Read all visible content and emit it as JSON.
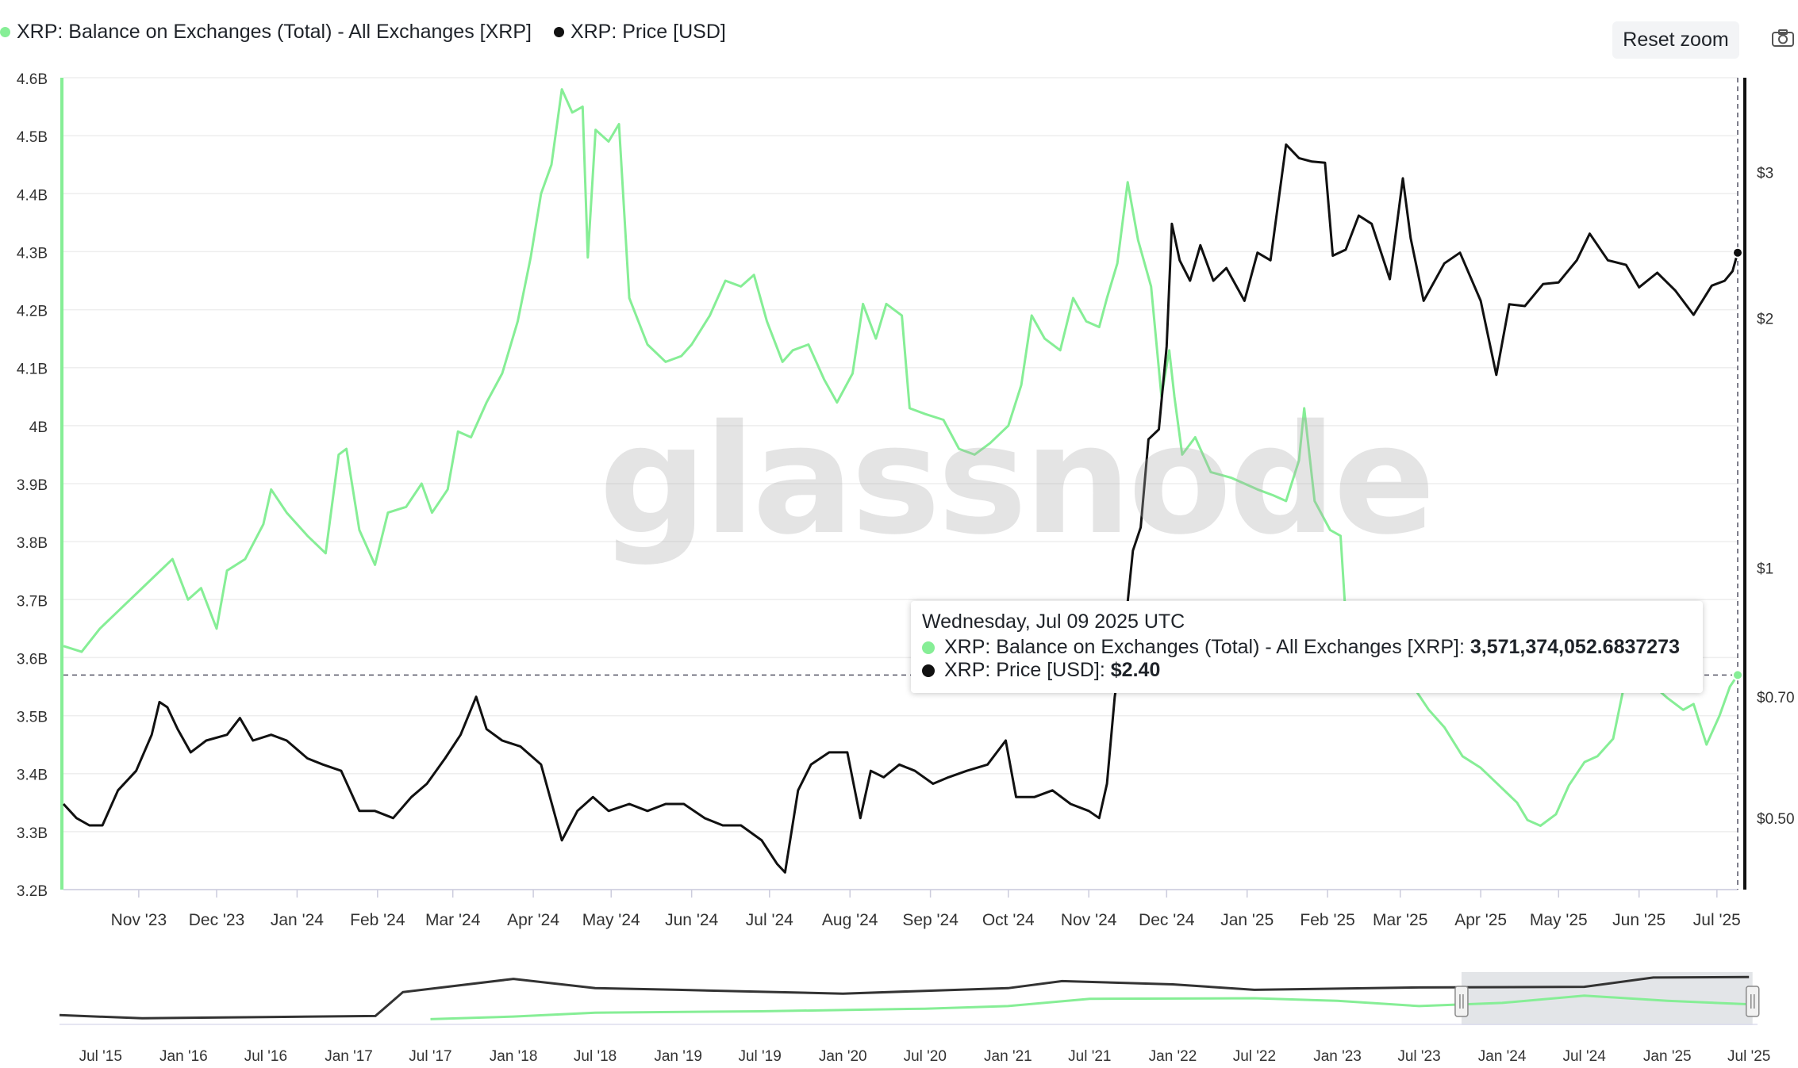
{
  "legend": {
    "series_1": "XRP: Balance on Exchanges (Total) - All Exchanges [XRP]",
    "series_2": "XRP: Price [USD]"
  },
  "toolbar": {
    "reset_zoom": "Reset zoom",
    "camera_icon": "camera-icon"
  },
  "watermark": "glassnode",
  "colors": {
    "balance": "#86ee96",
    "price": "#111111",
    "grid": "#eeeeee",
    "axis_text": "#333333"
  },
  "tooltip": {
    "date": "Wednesday, Jul 09 2025 UTC",
    "series_1_label": "XRP: Balance on Exchanges (Total) - All Exchanges [XRP]:",
    "series_1_value": "3,571,374,052.6837273",
    "series_2_label": "XRP: Price [USD]:",
    "series_2_value": "$2.40"
  },
  "chart_data": {
    "type": "line",
    "title": "",
    "x_range": [
      "2023-10-03",
      "2025-07-09"
    ],
    "x_ticks": [
      "Nov '23",
      "Dec '23",
      "Jan '24",
      "Feb '24",
      "Mar '24",
      "Apr '24",
      "May '24",
      "Jun '24",
      "Jul '24",
      "Aug '24",
      "Sep '24",
      "Oct '24",
      "Nov '24",
      "Dec '24",
      "Jan '25",
      "Feb '25",
      "Mar '25",
      "Apr '25",
      "May '25",
      "Jun '25",
      "Jul '25"
    ],
    "y_left": {
      "ticks": [
        "3.2B",
        "3.3B",
        "3.4B",
        "3.5B",
        "3.6B",
        "3.7B",
        "3.8B",
        "3.9B",
        "4B",
        "4.1B",
        "4.2B",
        "4.3B",
        "4.4B",
        "4.5B",
        "4.6B"
      ],
      "range": [
        3.2,
        4.6
      ],
      "unit": "B XRP"
    },
    "y_right": {
      "scale": "log",
      "ticks": [
        "$0.50",
        "$0.70",
        "$1",
        "$2",
        "$3"
      ],
      "range": [
        0.41,
        3.9
      ]
    },
    "series": [
      {
        "name": "XRP: Balance on Exchanges (Total) - All Exchanges [XRP]",
        "axis": "left",
        "points": [
          [
            "2023-10-03",
            3.62
          ],
          [
            "2023-10-10",
            3.61
          ],
          [
            "2023-10-17",
            3.65
          ],
          [
            "2023-10-24",
            3.68
          ],
          [
            "2023-10-31",
            3.71
          ],
          [
            "2023-11-07",
            3.74
          ],
          [
            "2023-11-14",
            3.77
          ],
          [
            "2023-11-20",
            3.7
          ],
          [
            "2023-11-25",
            3.72
          ],
          [
            "2023-12-01",
            3.65
          ],
          [
            "2023-12-05",
            3.75
          ],
          [
            "2023-12-12",
            3.77
          ],
          [
            "2023-12-19",
            3.83
          ],
          [
            "2023-12-22",
            3.89
          ],
          [
            "2023-12-28",
            3.85
          ],
          [
            "2024-01-05",
            3.81
          ],
          [
            "2024-01-12",
            3.78
          ],
          [
            "2024-01-17",
            3.95
          ],
          [
            "2024-01-20",
            3.96
          ],
          [
            "2024-01-25",
            3.82
          ],
          [
            "2024-01-31",
            3.76
          ],
          [
            "2024-02-05",
            3.85
          ],
          [
            "2024-02-12",
            3.86
          ],
          [
            "2024-02-18",
            3.9
          ],
          [
            "2024-02-22",
            3.85
          ],
          [
            "2024-02-28",
            3.89
          ],
          [
            "2024-03-03",
            3.99
          ],
          [
            "2024-03-08",
            3.98
          ],
          [
            "2024-03-14",
            4.04
          ],
          [
            "2024-03-20",
            4.09
          ],
          [
            "2024-03-26",
            4.18
          ],
          [
            "2024-03-31",
            4.29
          ],
          [
            "2024-04-04",
            4.4
          ],
          [
            "2024-04-08",
            4.45
          ],
          [
            "2024-04-12",
            4.58
          ],
          [
            "2024-04-16",
            4.54
          ],
          [
            "2024-04-20",
            4.55
          ],
          [
            "2024-04-22",
            4.29
          ],
          [
            "2024-04-25",
            4.51
          ],
          [
            "2024-04-30",
            4.49
          ],
          [
            "2024-05-04",
            4.52
          ],
          [
            "2024-05-08",
            4.22
          ],
          [
            "2024-05-15",
            4.14
          ],
          [
            "2024-05-22",
            4.11
          ],
          [
            "2024-05-28",
            4.12
          ],
          [
            "2024-06-01",
            4.14
          ],
          [
            "2024-06-08",
            4.19
          ],
          [
            "2024-06-14",
            4.25
          ],
          [
            "2024-06-20",
            4.24
          ],
          [
            "2024-06-25",
            4.26
          ],
          [
            "2024-06-30",
            4.18
          ],
          [
            "2024-07-06",
            4.11
          ],
          [
            "2024-07-10",
            4.13
          ],
          [
            "2024-07-16",
            4.14
          ],
          [
            "2024-07-22",
            4.08
          ],
          [
            "2024-07-27",
            4.04
          ],
          [
            "2024-08-02",
            4.09
          ],
          [
            "2024-08-06",
            4.21
          ],
          [
            "2024-08-11",
            4.15
          ],
          [
            "2024-08-15",
            4.21
          ],
          [
            "2024-08-21",
            4.19
          ],
          [
            "2024-08-24",
            4.03
          ],
          [
            "2024-08-30",
            4.02
          ],
          [
            "2024-09-06",
            4.01
          ],
          [
            "2024-09-12",
            3.96
          ],
          [
            "2024-09-18",
            3.95
          ],
          [
            "2024-09-24",
            3.97
          ],
          [
            "2024-10-01",
            4.0
          ],
          [
            "2024-10-06",
            4.07
          ],
          [
            "2024-10-10",
            4.19
          ],
          [
            "2024-10-15",
            4.15
          ],
          [
            "2024-10-21",
            4.13
          ],
          [
            "2024-10-26",
            4.22
          ],
          [
            "2024-10-31",
            4.18
          ],
          [
            "2024-11-05",
            4.17
          ],
          [
            "2024-11-08",
            4.22
          ],
          [
            "2024-11-12",
            4.28
          ],
          [
            "2024-11-16",
            4.42
          ],
          [
            "2024-11-20",
            4.32
          ],
          [
            "2024-11-25",
            4.24
          ],
          [
            "2024-11-29",
            4.05
          ],
          [
            "2024-12-02",
            4.13
          ],
          [
            "2024-12-04",
            4.05
          ],
          [
            "2024-12-07",
            3.95
          ],
          [
            "2024-12-12",
            3.98
          ],
          [
            "2024-12-18",
            3.92
          ],
          [
            "2024-12-26",
            3.91
          ],
          [
            "2025-01-05",
            3.89
          ],
          [
            "2025-01-11",
            3.88
          ],
          [
            "2025-01-16",
            3.87
          ],
          [
            "2025-01-21",
            3.94
          ],
          [
            "2025-01-23",
            4.03
          ],
          [
            "2025-01-27",
            3.87
          ],
          [
            "2025-02-02",
            3.82
          ],
          [
            "2025-02-06",
            3.81
          ],
          [
            "2025-02-08",
            3.67
          ],
          [
            "2025-03-06",
            3.55
          ],
          [
            "2025-03-12",
            3.51
          ],
          [
            "2025-03-18",
            3.48
          ],
          [
            "2025-03-25",
            3.43
          ],
          [
            "2025-04-01",
            3.41
          ],
          [
            "2025-04-08",
            3.38
          ],
          [
            "2025-04-15",
            3.35
          ],
          [
            "2025-04-19",
            3.32
          ],
          [
            "2025-04-24",
            3.31
          ],
          [
            "2025-04-30",
            3.33
          ],
          [
            "2025-05-05",
            3.38
          ],
          [
            "2025-05-11",
            3.42
          ],
          [
            "2025-05-16",
            3.43
          ],
          [
            "2025-05-22",
            3.46
          ],
          [
            "2025-05-28",
            3.59
          ],
          [
            "2025-06-12",
            3.53
          ],
          [
            "2025-06-18",
            3.51
          ],
          [
            "2025-06-22",
            3.52
          ],
          [
            "2025-06-27",
            3.45
          ],
          [
            "2025-07-02",
            3.5
          ],
          [
            "2025-07-06",
            3.55
          ],
          [
            "2025-07-09",
            3.57
          ]
        ]
      },
      {
        "name": "XRP: Price [USD]",
        "axis": "right",
        "points": [
          [
            "2023-10-03",
            0.52
          ],
          [
            "2023-10-08",
            0.5
          ],
          [
            "2023-10-13",
            0.49
          ],
          [
            "2023-10-18",
            0.49
          ],
          [
            "2023-10-24",
            0.54
          ],
          [
            "2023-10-31",
            0.57
          ],
          [
            "2023-11-06",
            0.63
          ],
          [
            "2023-11-09",
            0.69
          ],
          [
            "2023-11-12",
            0.68
          ],
          [
            "2023-11-16",
            0.64
          ],
          [
            "2023-11-21",
            0.6
          ],
          [
            "2023-11-27",
            0.62
          ],
          [
            "2023-12-05",
            0.63
          ],
          [
            "2023-12-10",
            0.66
          ],
          [
            "2023-12-15",
            0.62
          ],
          [
            "2023-12-22",
            0.63
          ],
          [
            "2023-12-28",
            0.62
          ],
          [
            "2024-01-05",
            0.59
          ],
          [
            "2024-01-11",
            0.58
          ],
          [
            "2024-01-18",
            0.57
          ],
          [
            "2024-01-25",
            0.51
          ],
          [
            "2024-01-31",
            0.51
          ],
          [
            "2024-02-07",
            0.5
          ],
          [
            "2024-02-14",
            0.53
          ],
          [
            "2024-02-20",
            0.55
          ],
          [
            "2024-02-27",
            0.59
          ],
          [
            "2024-03-04",
            0.63
          ],
          [
            "2024-03-10",
            0.7
          ],
          [
            "2024-03-14",
            0.64
          ],
          [
            "2024-03-20",
            0.62
          ],
          [
            "2024-03-27",
            0.61
          ],
          [
            "2024-04-04",
            0.58
          ],
          [
            "2024-04-12",
            0.47
          ],
          [
            "2024-04-18",
            0.51
          ],
          [
            "2024-04-24",
            0.53
          ],
          [
            "2024-04-30",
            0.51
          ],
          [
            "2024-05-08",
            0.52
          ],
          [
            "2024-05-15",
            0.51
          ],
          [
            "2024-05-22",
            0.52
          ],
          [
            "2024-05-29",
            0.52
          ],
          [
            "2024-06-06",
            0.5
          ],
          [
            "2024-06-13",
            0.49
          ],
          [
            "2024-06-20",
            0.49
          ],
          [
            "2024-06-28",
            0.47
          ],
          [
            "2024-07-04",
            0.44
          ],
          [
            "2024-07-07",
            0.43
          ],
          [
            "2024-07-12",
            0.54
          ],
          [
            "2024-07-17",
            0.58
          ],
          [
            "2024-07-24",
            0.6
          ],
          [
            "2024-07-31",
            0.6
          ],
          [
            "2024-08-05",
            0.5
          ],
          [
            "2024-08-09",
            0.57
          ],
          [
            "2024-08-14",
            0.56
          ],
          [
            "2024-08-20",
            0.58
          ],
          [
            "2024-08-26",
            0.57
          ],
          [
            "2024-09-02",
            0.55
          ],
          [
            "2024-09-08",
            0.56
          ],
          [
            "2024-09-15",
            0.57
          ],
          [
            "2024-09-23",
            0.58
          ],
          [
            "2024-09-30",
            0.62
          ],
          [
            "2024-10-04",
            0.53
          ],
          [
            "2024-10-11",
            0.53
          ],
          [
            "2024-10-18",
            0.54
          ],
          [
            "2024-10-25",
            0.52
          ],
          [
            "2024-11-01",
            0.51
          ],
          [
            "2024-11-05",
            0.5
          ],
          [
            "2024-11-08",
            0.55
          ],
          [
            "2024-11-11",
            0.7
          ],
          [
            "2024-11-15",
            0.85
          ],
          [
            "2024-11-18",
            1.05
          ],
          [
            "2024-11-21",
            1.12
          ],
          [
            "2024-11-24",
            1.43
          ],
          [
            "2024-11-28",
            1.47
          ],
          [
            "2024-12-01",
            1.85
          ],
          [
            "2024-12-03",
            2.6
          ],
          [
            "2024-12-06",
            2.35
          ],
          [
            "2024-12-10",
            2.22
          ],
          [
            "2024-12-14",
            2.45
          ],
          [
            "2024-12-19",
            2.22
          ],
          [
            "2024-12-24",
            2.3
          ],
          [
            "2024-12-31",
            2.1
          ],
          [
            "2025-01-05",
            2.4
          ],
          [
            "2025-01-10",
            2.35
          ],
          [
            "2025-01-16",
            3.24
          ],
          [
            "2025-01-21",
            3.12
          ],
          [
            "2025-01-26",
            3.09
          ],
          [
            "2025-01-31",
            3.08
          ],
          [
            "2025-02-03",
            2.38
          ],
          [
            "2025-02-08",
            2.42
          ],
          [
            "2025-02-13",
            2.66
          ],
          [
            "2025-02-18",
            2.6
          ],
          [
            "2025-02-25",
            2.23
          ],
          [
            "2025-03-02",
            2.95
          ],
          [
            "2025-03-05",
            2.5
          ],
          [
            "2025-03-10",
            2.1
          ],
          [
            "2025-03-18",
            2.33
          ],
          [
            "2025-03-24",
            2.4
          ],
          [
            "2025-04-01",
            2.1
          ],
          [
            "2025-04-07",
            1.71
          ],
          [
            "2025-04-12",
            2.08
          ],
          [
            "2025-04-18",
            2.07
          ],
          [
            "2025-04-25",
            2.2
          ],
          [
            "2025-05-01",
            2.21
          ],
          [
            "2025-05-08",
            2.35
          ],
          [
            "2025-05-13",
            2.53
          ],
          [
            "2025-05-20",
            2.35
          ],
          [
            "2025-05-27",
            2.32
          ],
          [
            "2025-06-01",
            2.18
          ],
          [
            "2025-06-08",
            2.27
          ],
          [
            "2025-06-15",
            2.16
          ],
          [
            "2025-06-22",
            2.02
          ],
          [
            "2025-06-29",
            2.19
          ],
          [
            "2025-07-04",
            2.22
          ],
          [
            "2025-07-07",
            2.28
          ],
          [
            "2025-07-09",
            2.4
          ]
        ]
      }
    ],
    "navigator": {
      "x_ticks": [
        "Jul '15",
        "Jan '16",
        "Jul '16",
        "Jan '17",
        "Jul '17",
        "Jan '18",
        "Jul '18",
        "Jan '19",
        "Jul '19",
        "Jan '20",
        "Jul '20",
        "Jan '21",
        "Jul '21",
        "Jan '22",
        "Jul '22",
        "Jan '23",
        "Jul '23",
        "Jan '24",
        "Jul '24",
        "Jan '25",
        "Jul '25"
      ],
      "selected_range": [
        "2023-10-03",
        "2025-07-09"
      ]
    }
  }
}
